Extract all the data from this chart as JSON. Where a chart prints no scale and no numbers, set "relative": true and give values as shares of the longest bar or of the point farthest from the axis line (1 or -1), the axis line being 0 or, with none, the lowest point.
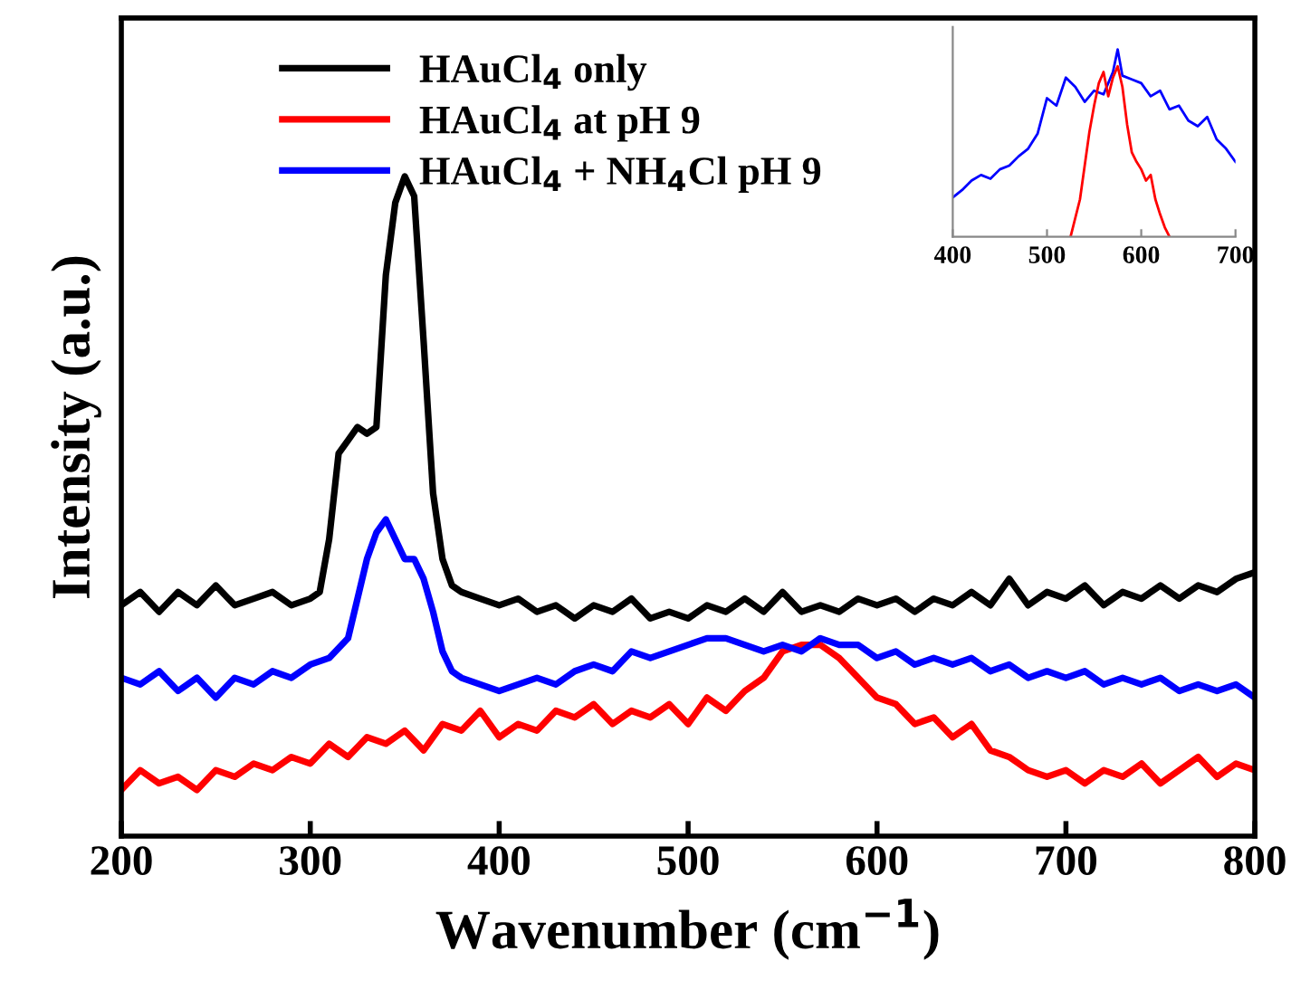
{
  "chart_data": [
    {
      "type": "line",
      "xlabel": "Wavenumber (cm$^{−1}$)",
      "ylabel": "Intensity (a.u.)",
      "relative": true,
      "xlim": [
        200,
        800
      ],
      "xticks": [
        200,
        300,
        400,
        500,
        600,
        700,
        800
      ],
      "tick_labels": "x",
      "legend": "top",
      "grid": false,
      "series": [
        {
          "name": "HAuCl$_{4}$ only",
          "color": "#000000",
          "x": [
            200,
            210,
            220,
            230,
            240,
            250,
            260,
            270,
            280,
            290,
            300,
            305,
            310,
            315,
            320,
            325,
            330,
            335,
            340,
            345,
            350,
            355,
            360,
            365,
            370,
            375,
            380,
            390,
            400,
            410,
            420,
            430,
            440,
            450,
            460,
            470,
            480,
            490,
            500,
            510,
            520,
            530,
            540,
            550,
            560,
            570,
            580,
            590,
            600,
            610,
            620,
            630,
            640,
            650,
            660,
            670,
            680,
            690,
            700,
            710,
            720,
            730,
            740,
            750,
            760,
            770,
            780,
            790,
            800
          ],
          "values": [
            0.35,
            0.37,
            0.34,
            0.37,
            0.35,
            0.38,
            0.35,
            0.36,
            0.37,
            0.35,
            0.36,
            0.37,
            0.45,
            0.58,
            0.6,
            0.62,
            0.61,
            0.62,
            0.85,
            0.96,
            1.0,
            0.97,
            0.75,
            0.52,
            0.42,
            0.38,
            0.37,
            0.36,
            0.35,
            0.36,
            0.34,
            0.35,
            0.33,
            0.35,
            0.34,
            0.36,
            0.33,
            0.34,
            0.33,
            0.35,
            0.34,
            0.36,
            0.34,
            0.37,
            0.34,
            0.35,
            0.34,
            0.36,
            0.35,
            0.36,
            0.34,
            0.36,
            0.35,
            0.37,
            0.35,
            0.39,
            0.35,
            0.37,
            0.36,
            0.38,
            0.35,
            0.37,
            0.36,
            0.38,
            0.36,
            0.38,
            0.37,
            0.39,
            0.4
          ]
        },
        {
          "name": "HAuCl$_{4}$ at pH 9",
          "color": "#ff0000",
          "x": [
            200,
            210,
            220,
            230,
            240,
            250,
            260,
            270,
            280,
            290,
            300,
            310,
            320,
            330,
            340,
            350,
            360,
            370,
            380,
            390,
            400,
            410,
            420,
            430,
            440,
            450,
            460,
            470,
            480,
            490,
            500,
            510,
            520,
            530,
            540,
            550,
            560,
            570,
            580,
            590,
            600,
            610,
            620,
            630,
            640,
            650,
            660,
            670,
            680,
            690,
            700,
            710,
            720,
            730,
            740,
            750,
            760,
            770,
            780,
            790,
            800
          ],
          "values": [
            0.07,
            0.1,
            0.08,
            0.09,
            0.07,
            0.1,
            0.09,
            0.11,
            0.1,
            0.12,
            0.11,
            0.14,
            0.12,
            0.15,
            0.14,
            0.16,
            0.13,
            0.17,
            0.16,
            0.19,
            0.15,
            0.17,
            0.16,
            0.19,
            0.18,
            0.2,
            0.17,
            0.19,
            0.18,
            0.2,
            0.17,
            0.21,
            0.19,
            0.22,
            0.24,
            0.28,
            0.29,
            0.29,
            0.27,
            0.24,
            0.21,
            0.2,
            0.17,
            0.18,
            0.15,
            0.17,
            0.13,
            0.12,
            0.1,
            0.09,
            0.1,
            0.08,
            0.1,
            0.09,
            0.11,
            0.08,
            0.1,
            0.12,
            0.09,
            0.11,
            0.1
          ]
        },
        {
          "name": "HAuCl$_{4}$ + NH$_{4}$Cl pH 9",
          "color": "#0000ff",
          "x": [
            200,
            210,
            220,
            230,
            240,
            250,
            260,
            270,
            280,
            290,
            300,
            310,
            320,
            325,
            330,
            335,
            340,
            345,
            350,
            355,
            360,
            365,
            370,
            375,
            380,
            390,
            400,
            410,
            420,
            430,
            440,
            450,
            460,
            470,
            480,
            490,
            500,
            510,
            520,
            530,
            540,
            550,
            560,
            570,
            580,
            590,
            600,
            610,
            620,
            630,
            640,
            650,
            660,
            670,
            680,
            690,
            700,
            710,
            720,
            730,
            740,
            750,
            760,
            770,
            780,
            790,
            800
          ],
          "values": [
            0.24,
            0.23,
            0.25,
            0.22,
            0.24,
            0.21,
            0.24,
            0.23,
            0.25,
            0.24,
            0.26,
            0.27,
            0.3,
            0.36,
            0.42,
            0.46,
            0.48,
            0.45,
            0.42,
            0.42,
            0.39,
            0.34,
            0.28,
            0.25,
            0.24,
            0.23,
            0.22,
            0.23,
            0.24,
            0.23,
            0.25,
            0.26,
            0.25,
            0.28,
            0.27,
            0.28,
            0.29,
            0.3,
            0.3,
            0.29,
            0.28,
            0.29,
            0.28,
            0.3,
            0.29,
            0.29,
            0.27,
            0.28,
            0.26,
            0.27,
            0.26,
            0.27,
            0.25,
            0.26,
            0.24,
            0.25,
            0.24,
            0.25,
            0.23,
            0.24,
            0.23,
            0.24,
            0.22,
            0.23,
            0.22,
            0.23,
            0.21
          ]
        }
      ]
    },
    {
      "type": "line",
      "relative": true,
      "xlim": [
        400,
        700
      ],
      "xticks": [
        400,
        500,
        600,
        700
      ],
      "tick_labels": "x",
      "grid": false,
      "series": [
        {
          "color": "#0000ff",
          "x": [
            400,
            410,
            420,
            430,
            440,
            450,
            460,
            470,
            480,
            490,
            500,
            510,
            520,
            530,
            540,
            550,
            560,
            570,
            575,
            580,
            590,
            600,
            610,
            620,
            630,
            640,
            650,
            660,
            670,
            680,
            690,
            700
          ],
          "values": [
            0.21,
            0.25,
            0.3,
            0.33,
            0.31,
            0.36,
            0.38,
            0.43,
            0.47,
            0.55,
            0.74,
            0.7,
            0.85,
            0.8,
            0.72,
            0.78,
            0.76,
            0.88,
            1.0,
            0.86,
            0.84,
            0.82,
            0.75,
            0.78,
            0.68,
            0.7,
            0.62,
            0.59,
            0.64,
            0.52,
            0.47,
            0.4
          ]
        },
        {
          "color": "#ff0000",
          "x": [
            525,
            535,
            545,
            550,
            555,
            560,
            565,
            570,
            575,
            580,
            585,
            590,
            595,
            600,
            605,
            610,
            615,
            620,
            625,
            630
          ],
          "values": [
            0.0,
            0.2,
            0.56,
            0.7,
            0.82,
            0.88,
            0.75,
            0.85,
            0.91,
            0.8,
            0.6,
            0.45,
            0.4,
            0.36,
            0.3,
            0.33,
            0.2,
            0.12,
            0.05,
            0.0
          ]
        }
      ]
    }
  ]
}
